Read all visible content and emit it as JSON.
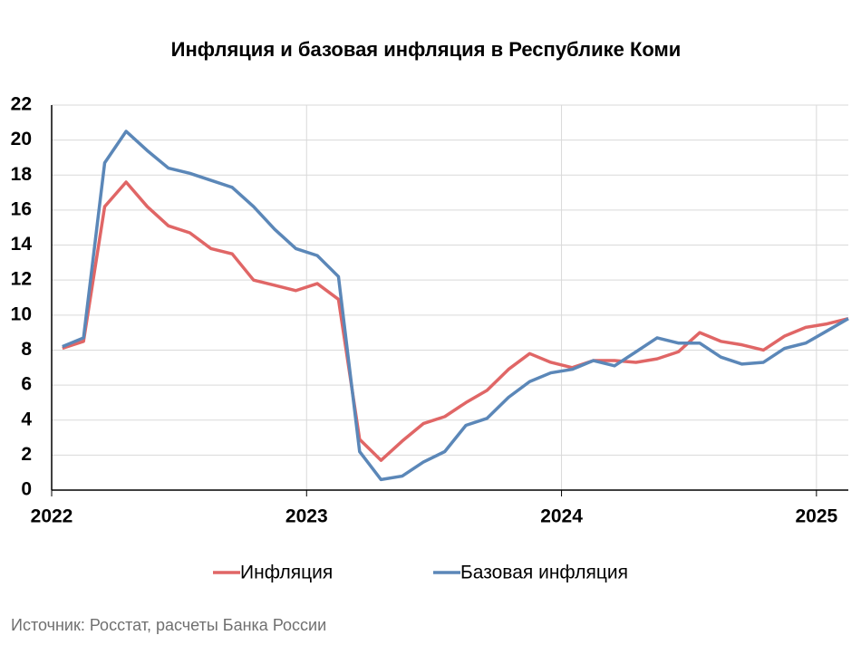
{
  "chart_data": {
    "type": "line",
    "title": "Инфляция и базовая инфляция в Республике Коми",
    "source": "Источник: Росстат, расчеты Банка России",
    "x": [
      2022.042,
      2022.125,
      2022.208,
      2022.292,
      2022.375,
      2022.458,
      2022.542,
      2022.625,
      2022.708,
      2022.792,
      2022.875,
      2022.958,
      2023.042,
      2023.125,
      2023.208,
      2023.292,
      2023.375,
      2023.458,
      2023.542,
      2023.625,
      2023.708,
      2023.792,
      2023.875,
      2023.958,
      2024.042,
      2024.125,
      2024.208,
      2024.292,
      2024.375,
      2024.458,
      2024.542,
      2024.625,
      2024.708,
      2024.792,
      2024.875,
      2024.958,
      2025.042,
      2025.125
    ],
    "series": [
      {
        "name": "Инфляция",
        "color": "#e06666",
        "values": [
          8.1,
          8.5,
          16.2,
          17.6,
          16.2,
          15.1,
          14.7,
          13.8,
          13.5,
          12.0,
          11.7,
          11.4,
          11.8,
          10.9,
          2.9,
          1.7,
          2.8,
          3.8,
          4.2,
          5.0,
          5.7,
          6.9,
          7.8,
          7.3,
          7.0,
          7.4,
          7.4,
          7.3,
          7.5,
          7.9,
          9.0,
          8.5,
          8.3,
          8.0,
          8.8,
          9.3,
          9.5,
          9.8
        ]
      },
      {
        "name": "Базовая инфляция",
        "color": "#5b87b8",
        "values": [
          8.2,
          8.7,
          18.7,
          20.5,
          19.4,
          18.4,
          18.1,
          17.7,
          17.3,
          16.2,
          14.9,
          13.8,
          13.4,
          12.2,
          2.2,
          0.6,
          0.8,
          1.6,
          2.2,
          3.7,
          4.1,
          5.3,
          6.2,
          6.7,
          6.9,
          7.4,
          7.1,
          7.9,
          8.7,
          8.4,
          8.4,
          7.6,
          7.2,
          7.3,
          8.1,
          8.4,
          9.1,
          9.8
        ]
      }
    ],
    "xlim": [
      2022,
      2025.125
    ],
    "xticks": [
      2022,
      2023,
      2024,
      2025
    ],
    "ylim": [
      0,
      22
    ],
    "yticks": [
      0,
      2,
      4,
      6,
      8,
      10,
      12,
      14,
      16,
      18,
      20,
      22
    ],
    "grid": true,
    "legend": "bottom"
  }
}
